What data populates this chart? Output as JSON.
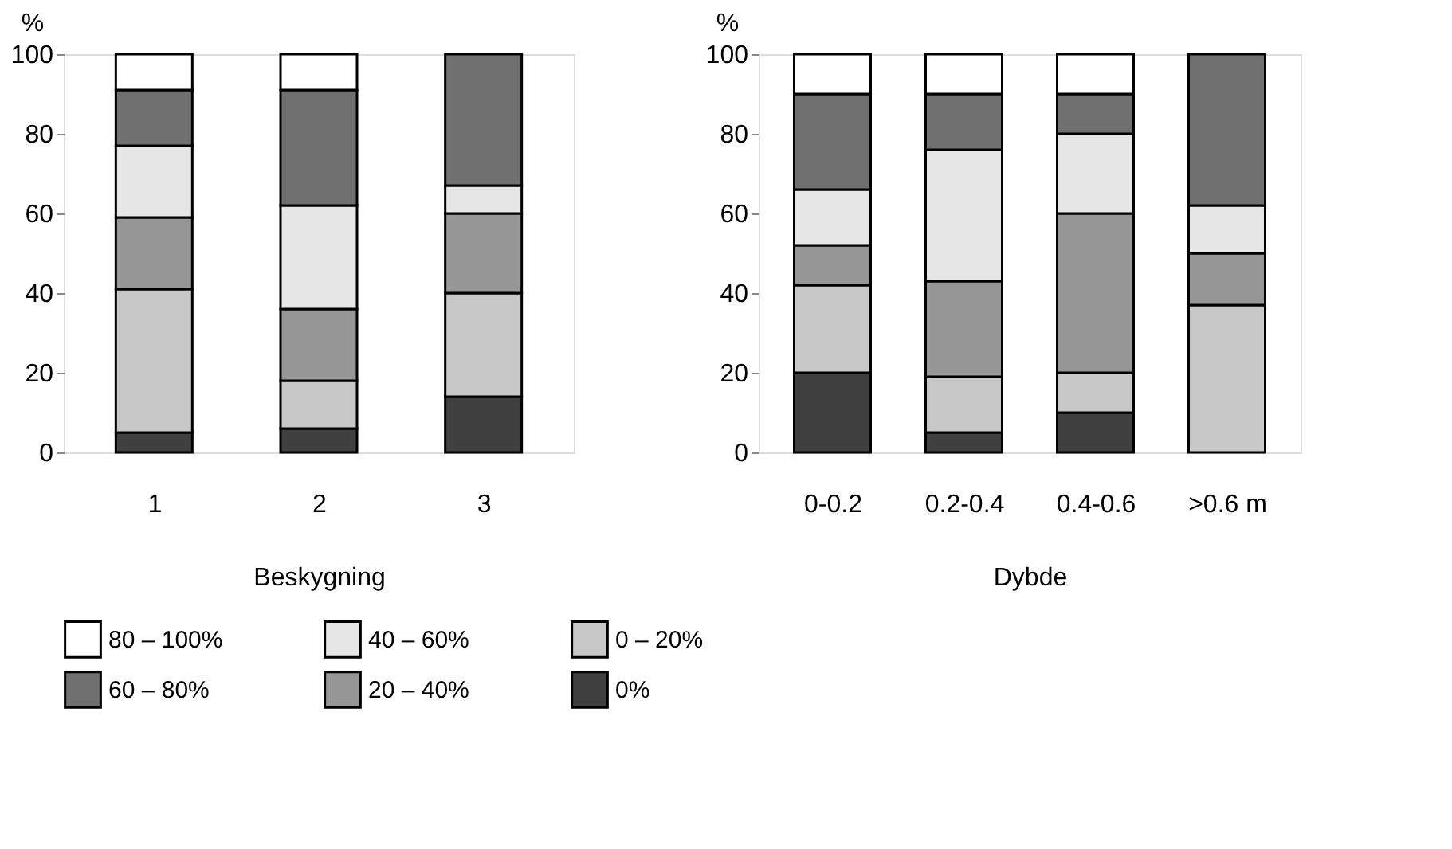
{
  "chart_data": [
    {
      "type": "bar",
      "stacked": true,
      "categories": [
        "1",
        "2",
        "3"
      ],
      "xlabel": "Beskygning",
      "ylabel": "%",
      "ylim": [
        0,
        100
      ],
      "yticks": [
        0,
        20,
        40,
        60,
        80,
        100
      ],
      "grid": false,
      "legend": "bottom",
      "series": [
        {
          "name": "0%",
          "color": "#404040",
          "values": [
            5,
            6,
            14
          ]
        },
        {
          "name": "0 – 20%",
          "color": "#c8c8c8",
          "values": [
            36,
            12,
            26
          ]
        },
        {
          "name": "20 – 40%",
          "color": "#969696",
          "values": [
            18,
            18,
            20
          ]
        },
        {
          "name": "40 – 60%",
          "color": "#e6e6e6",
          "values": [
            18,
            26,
            7
          ]
        },
        {
          "name": "60 – 80%",
          "color": "#707070",
          "values": [
            14,
            29,
            33
          ]
        },
        {
          "name": "80 – 100%",
          "color": "#ffffff",
          "values": [
            9,
            9,
            0
          ]
        }
      ]
    },
    {
      "type": "bar",
      "stacked": true,
      "categories": [
        "0-0.2",
        "0.2-0.4",
        "0.4-0.6",
        ">0.6 m"
      ],
      "xlabel": "Dybde",
      "ylabel": "%",
      "ylim": [
        0,
        100
      ],
      "yticks": [
        0,
        20,
        40,
        60,
        80,
        100
      ],
      "grid": false,
      "legend": "bottom",
      "series": [
        {
          "name": "0%",
          "color": "#404040",
          "values": [
            20,
            5,
            10,
            0
          ]
        },
        {
          "name": "0 – 20%",
          "color": "#c8c8c8",
          "values": [
            22,
            14,
            10,
            37
          ]
        },
        {
          "name": "20 – 40%",
          "color": "#969696",
          "values": [
            10,
            24,
            40,
            13
          ]
        },
        {
          "name": "40 – 60%",
          "color": "#e6e6e6",
          "values": [
            14,
            33,
            20,
            12
          ]
        },
        {
          "name": "60 – 80%",
          "color": "#707070",
          "values": [
            24,
            14,
            10,
            38
          ]
        },
        {
          "name": "80 – 100%",
          "color": "#ffffff",
          "values": [
            10,
            10,
            10,
            0
          ]
        }
      ]
    }
  ]
}
